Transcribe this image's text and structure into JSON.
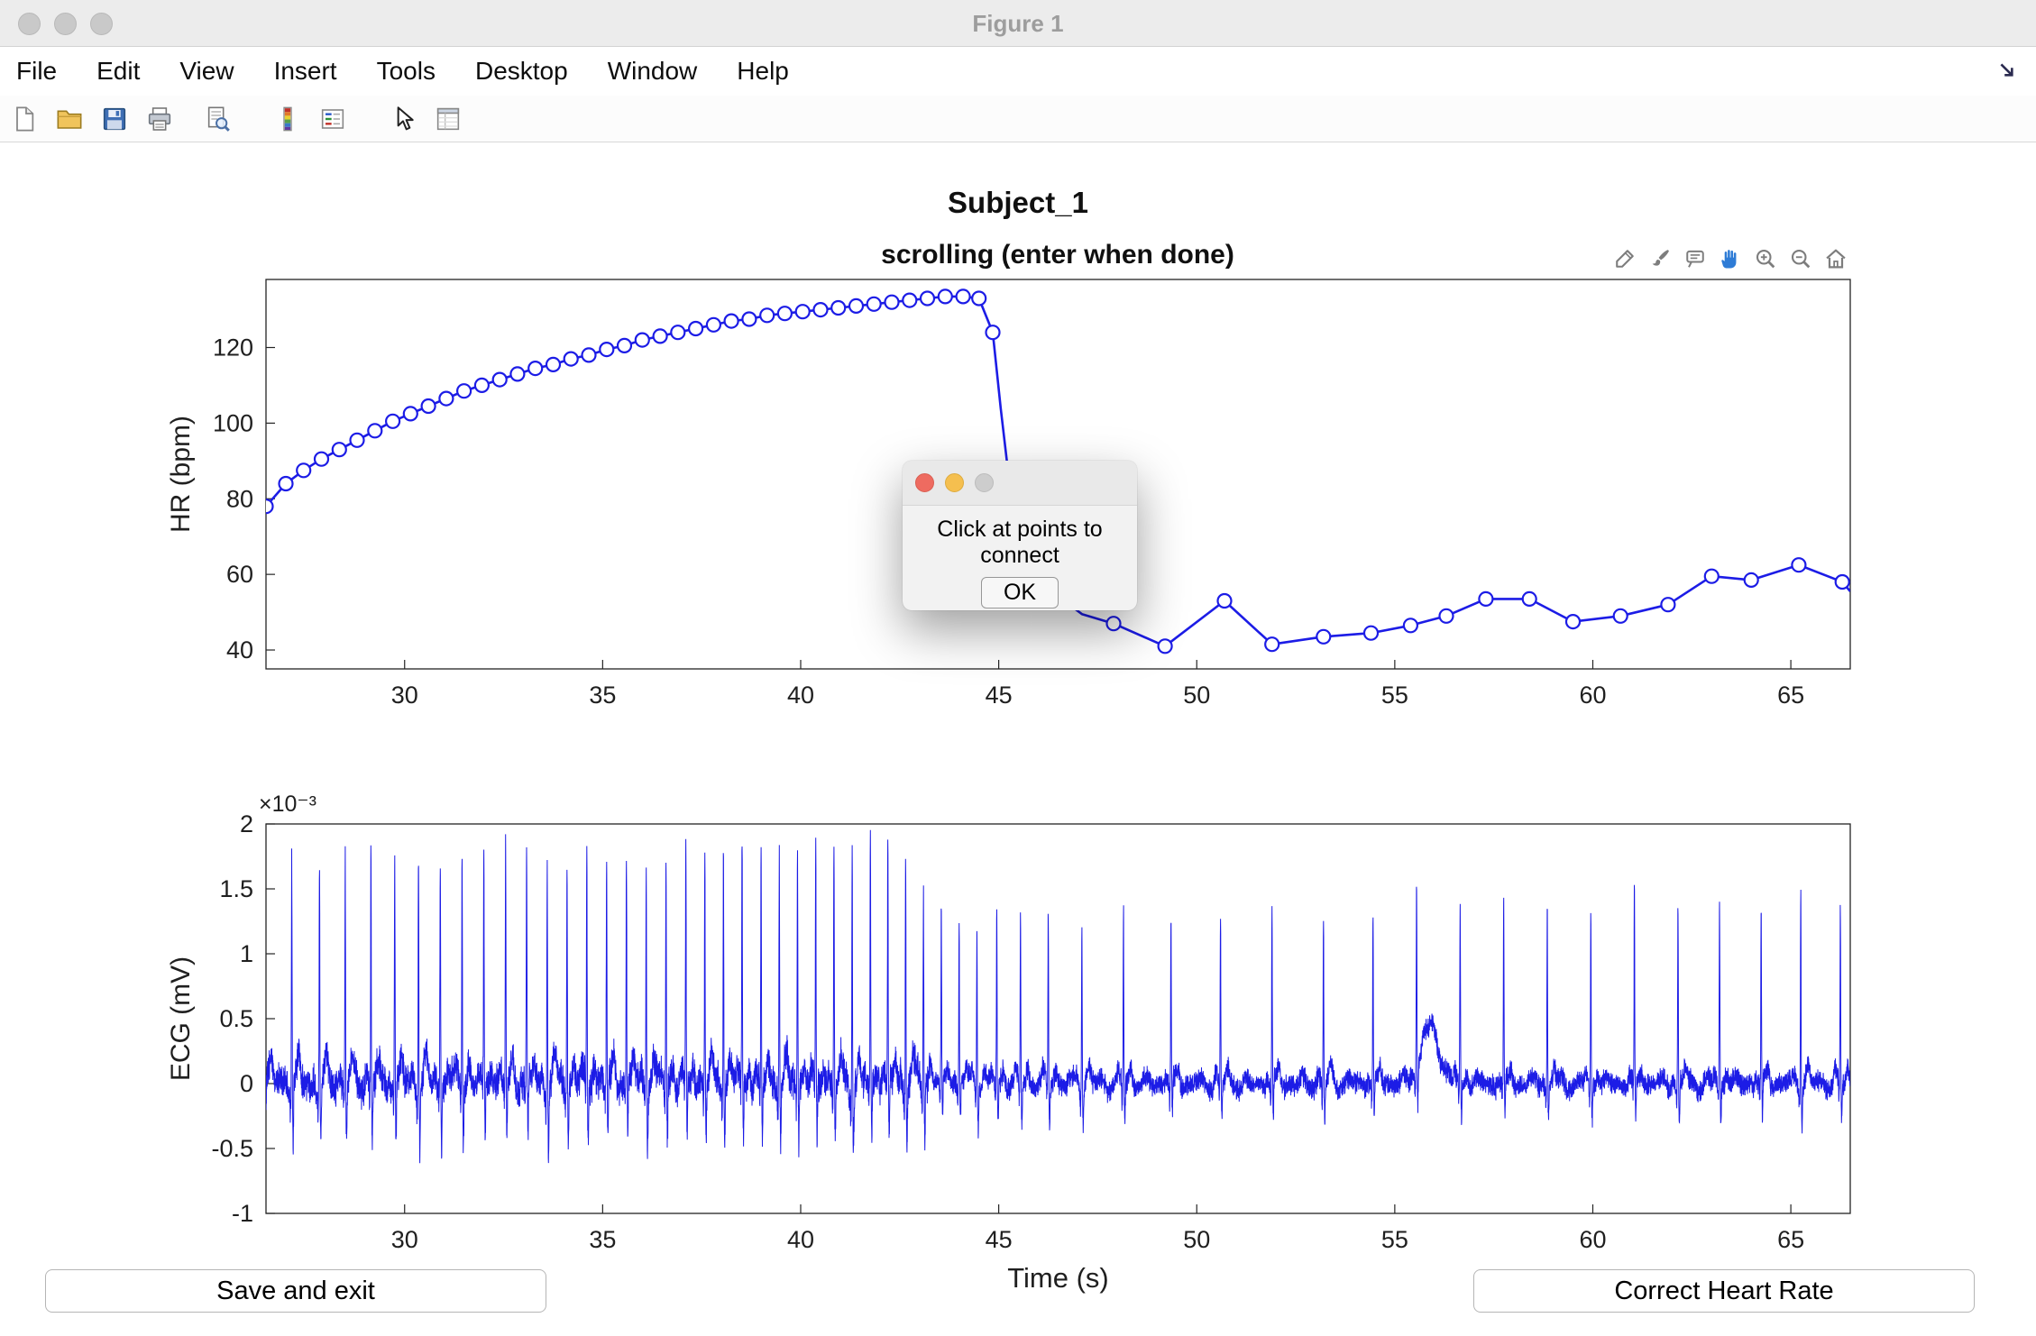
{
  "window": {
    "title": "Figure 1"
  },
  "menu": {
    "items": [
      "File",
      "Edit",
      "View",
      "Insert",
      "Tools",
      "Desktop",
      "Window",
      "Help"
    ]
  },
  "toolbar": {
    "icons": [
      "new-file-icon",
      "open-file-icon",
      "save-figure-icon",
      "print-icon",
      "print-preview-icon",
      "colorbar-icon",
      "insert-legend-icon",
      "edit-plot-icon",
      "property-inspector-icon"
    ]
  },
  "figure": {
    "suptitle": "Subject_1",
    "axes_toolbar_icons": [
      "export-icon",
      "brush-icon",
      "datatips-icon",
      "pan-icon",
      "zoom-in-icon",
      "zoom-out-icon",
      "restore-view-icon"
    ],
    "axes_toolbar_active": "pan"
  },
  "dialog": {
    "message": "Click at points to connect",
    "ok_label": "OK"
  },
  "buttons": {
    "save_exit": "Save and exit",
    "correct_hr": "Correct Heart Rate"
  },
  "colors": {
    "line_blue": "#1c1ce6",
    "pan_active_blue": "#2e7cd6",
    "axes_color": "#242424"
  },
  "chart_data": [
    {
      "type": "line",
      "title": "scrolling (enter when done)",
      "ylabel": "HR (bpm)",
      "xlim": [
        26.5,
        66.5
      ],
      "ylim": [
        35,
        138
      ],
      "xticks": [
        30,
        35,
        40,
        45,
        50,
        55,
        60,
        65
      ],
      "yticks": [
        40,
        60,
        80,
        100,
        120
      ],
      "marker": "o",
      "line_color": "#1c1ce6",
      "points": [
        [
          26.5,
          78
        ],
        [
          27.0,
          84
        ],
        [
          27.45,
          87.5
        ],
        [
          27.9,
          90.5
        ],
        [
          28.35,
          93
        ],
        [
          28.8,
          95.5
        ],
        [
          29.25,
          98
        ],
        [
          29.7,
          100.5
        ],
        [
          30.15,
          102.5
        ],
        [
          30.6,
          104.5
        ],
        [
          31.05,
          106.5
        ],
        [
          31.5,
          108.5
        ],
        [
          31.95,
          110
        ],
        [
          32.4,
          111.5
        ],
        [
          32.85,
          113
        ],
        [
          33.3,
          114.5
        ],
        [
          33.75,
          115.5
        ],
        [
          34.2,
          117
        ],
        [
          34.65,
          118
        ],
        [
          35.1,
          119.5
        ],
        [
          35.55,
          120.5
        ],
        [
          36.0,
          122
        ],
        [
          36.45,
          123
        ],
        [
          36.9,
          124
        ],
        [
          37.35,
          125
        ],
        [
          37.8,
          126
        ],
        [
          38.25,
          127
        ],
        [
          38.7,
          127.5
        ],
        [
          39.15,
          128.5
        ],
        [
          39.6,
          129
        ],
        [
          40.05,
          129.5
        ],
        [
          40.5,
          130
        ],
        [
          40.95,
          130.5
        ],
        [
          41.4,
          131
        ],
        [
          41.85,
          131.5
        ],
        [
          42.3,
          132
        ],
        [
          42.75,
          132.5
        ],
        [
          43.2,
          133
        ],
        [
          43.65,
          133.5
        ],
        [
          44.1,
          133.5
        ],
        [
          44.5,
          133
        ],
        [
          44.85,
          124
        ],
        [
          45.05,
          104,
          0
        ],
        [
          45.25,
          86,
          0
        ],
        [
          45.7,
          67,
          0
        ],
        [
          46.4,
          55,
          0
        ],
        [
          47.1,
          49.5,
          0
        ],
        [
          47.9,
          47
        ],
        [
          49.2,
          41
        ],
        [
          50.7,
          53
        ],
        [
          51.9,
          41.5
        ],
        [
          53.2,
          43.5
        ],
        [
          54.4,
          44.5
        ],
        [
          55.4,
          46.5
        ],
        [
          56.3,
          49
        ],
        [
          57.3,
          53.5
        ],
        [
          58.4,
          53.5
        ],
        [
          59.5,
          47.5
        ],
        [
          60.7,
          49
        ],
        [
          61.9,
          52
        ],
        [
          63.0,
          59.5
        ],
        [
          64.0,
          58.5
        ],
        [
          65.2,
          62.5
        ],
        [
          66.3,
          58
        ],
        [
          66.5,
          55.5,
          0
        ]
      ]
    },
    {
      "type": "line",
      "ylabel": "ECG (mV)",
      "xlabel": "Time (s)",
      "exponent_label": "×10⁻³",
      "units": "values in 1e-3 mV",
      "xlim": [
        26.5,
        66.5
      ],
      "ylim": [
        -1,
        2
      ],
      "xticks": [
        30,
        35,
        40,
        45,
        50,
        55,
        60,
        65
      ],
      "yticks": [
        -1,
        -0.5,
        0,
        0.5,
        1,
        1.5,
        2
      ],
      "line_color": "#1c1ce6",
      "r_peaks": [
        [
          26.45,
          1.75
        ],
        [
          27.15,
          1.8
        ],
        [
          27.85,
          1.72
        ],
        [
          28.5,
          1.82
        ],
        [
          29.15,
          1.76
        ],
        [
          29.75,
          1.8
        ],
        [
          30.35,
          1.84
        ],
        [
          30.9,
          1.75
        ],
        [
          31.45,
          1.8
        ],
        [
          32.0,
          1.74
        ],
        [
          32.55,
          1.82
        ],
        [
          33.08,
          1.78
        ],
        [
          33.6,
          1.8
        ],
        [
          34.1,
          1.75
        ],
        [
          34.6,
          1.83
        ],
        [
          35.1,
          1.78
        ],
        [
          35.6,
          1.8
        ],
        [
          36.1,
          1.74
        ],
        [
          36.6,
          1.8
        ],
        [
          37.1,
          1.83
        ],
        [
          37.58,
          1.77
        ],
        [
          38.05,
          1.8
        ],
        [
          38.52,
          1.85
        ],
        [
          39.0,
          1.8
        ],
        [
          39.46,
          1.83
        ],
        [
          39.92,
          1.85
        ],
        [
          40.38,
          1.8
        ],
        [
          40.84,
          1.86
        ],
        [
          41.3,
          1.84
        ],
        [
          41.76,
          1.86
        ],
        [
          42.2,
          1.8
        ],
        [
          42.65,
          1.72
        ],
        [
          43.1,
          1.5
        ],
        [
          43.55,
          1.32
        ],
        [
          44.0,
          1.22
        ],
        [
          44.45,
          1.2
        ],
        [
          44.95,
          1.32
        ],
        [
          45.55,
          1.28
        ],
        [
          46.25,
          1.33
        ],
        [
          47.1,
          1.28
        ],
        [
          48.15,
          1.33
        ],
        [
          49.35,
          1.28
        ],
        [
          50.6,
          1.33
        ],
        [
          51.9,
          1.28
        ],
        [
          53.2,
          1.32
        ],
        [
          54.45,
          1.28
        ],
        [
          55.55,
          1.5
        ],
        [
          56.65,
          1.33
        ],
        [
          57.75,
          1.38
        ],
        [
          58.85,
          1.33
        ],
        [
          59.95,
          1.28
        ],
        [
          61.05,
          1.45
        ],
        [
          62.15,
          1.33
        ],
        [
          63.2,
          1.4
        ],
        [
          64.25,
          1.33
        ],
        [
          65.25,
          1.52
        ],
        [
          66.25,
          1.35
        ]
      ],
      "baseline_hump": {
        "t": 55.9,
        "amplitude": 0.42
      }
    }
  ]
}
